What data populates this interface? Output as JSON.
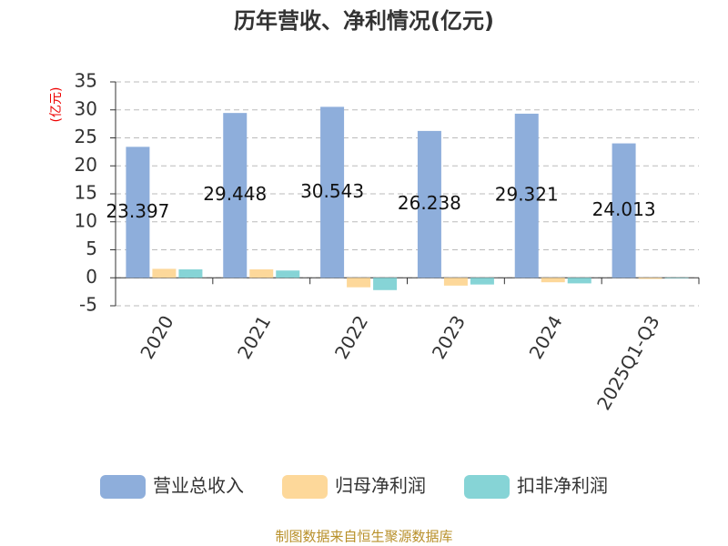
{
  "chart_data": {
    "type": "bar",
    "title": "历年营收、净利情况(亿元)",
    "y_label": "(亿元)",
    "source": "制图数据来自恒生聚源数据库",
    "categories": [
      "2020",
      "2021",
      "2022",
      "2023",
      "2024",
      "2025Q1-Q3"
    ],
    "series": [
      {
        "name": "营业总收入",
        "color": "#8eaedb",
        "values": [
          23.397,
          29.448,
          30.543,
          26.238,
          29.321,
          24.013
        ],
        "show_labels": true
      },
      {
        "name": "归母净利润",
        "color": "#fdd89a",
        "values": [
          1.6,
          1.5,
          -1.7,
          -1.4,
          -0.8,
          -0.2
        ]
      },
      {
        "name": "扣非净利润",
        "color": "#86d4d6",
        "values": [
          1.5,
          1.3,
          -2.2,
          -1.2,
          -1.0,
          -0.1
        ]
      }
    ],
    "ylim": [
      -5,
      35
    ],
    "yticks": [
      -5,
      0,
      5,
      10,
      15,
      20,
      25,
      30,
      35
    ],
    "grid": true
  }
}
